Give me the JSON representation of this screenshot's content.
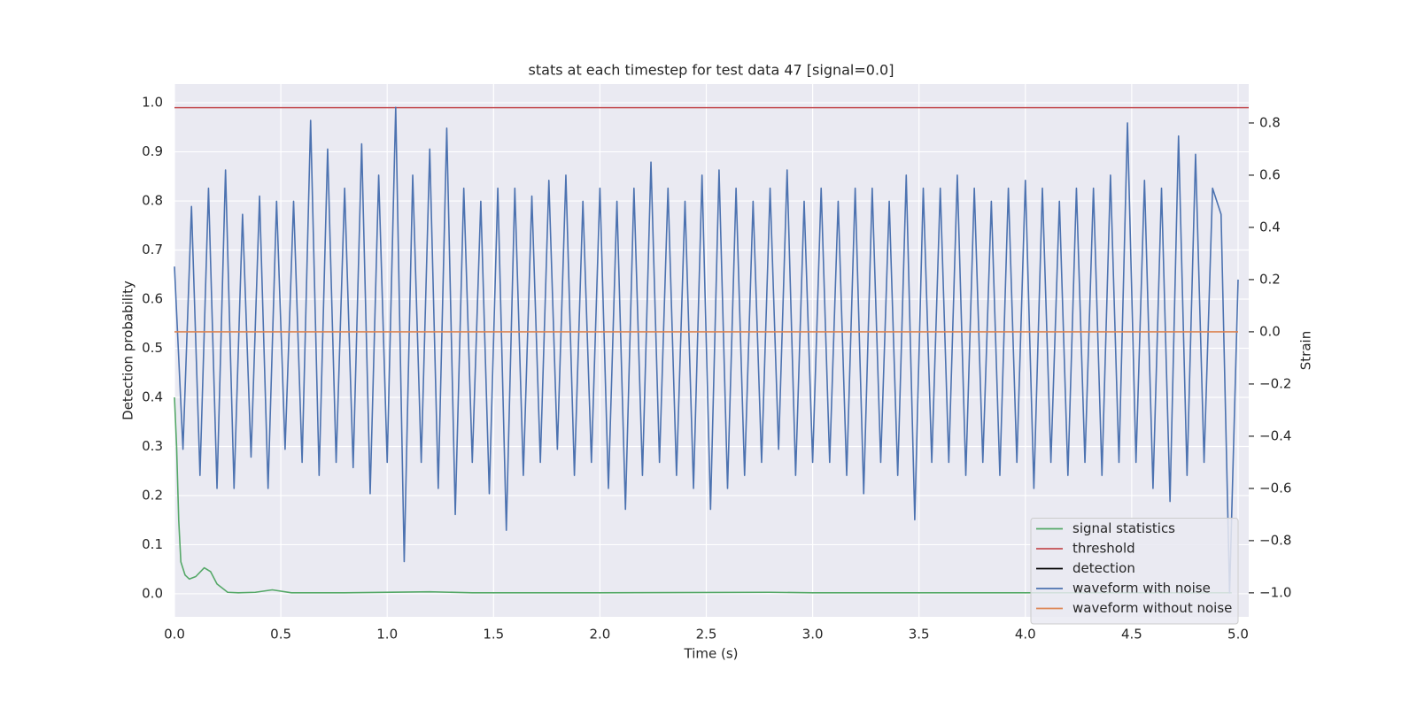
{
  "chart_data": {
    "type": "line",
    "title": "stats at each timestep for test data 47 [signal=0.0]",
    "xlabel": "Time (s)",
    "ylabel": "Detection probability",
    "y2label": "Strain",
    "xlim": [
      0,
      5.05
    ],
    "ylim": [
      -0.047,
      1.038
    ],
    "y2lim": [
      -1.092,
      0.949
    ],
    "xticks": [
      {
        "value": 0,
        "label": "0.0"
      },
      0.5,
      {
        "value": 1,
        "label": "1.0"
      },
      1.5,
      {
        "value": 2,
        "label": "2.0"
      },
      2.5,
      {
        "value": 3,
        "label": "3.0"
      },
      3.5,
      {
        "value": 4,
        "label": "4.0"
      },
      4.5,
      {
        "value": 5,
        "label": "5.0"
      }
    ],
    "yticks": [
      {
        "value": 0,
        "label": "0.0"
      },
      0.1,
      0.2,
      0.3,
      0.4,
      0.5,
      0.6,
      0.7,
      0.8,
      0.9,
      {
        "value": 1,
        "label": "1.0"
      }
    ],
    "y2ticks": [
      {
        "value": -1,
        "label": "−1.0"
      },
      {
        "value": -0.8,
        "label": "−0.8"
      },
      {
        "value": -0.6,
        "label": "−0.6"
      },
      {
        "value": -0.4,
        "label": "−0.4"
      },
      {
        "value": -0.2,
        "label": "−0.2"
      },
      {
        "value": 0,
        "label": "0.0"
      },
      0.2,
      0.4,
      0.6,
      0.8
    ],
    "grid": true,
    "legend": "lower right",
    "series": [
      {
        "name": "signal statistics",
        "color": "#55a868",
        "x": [
          0,
          0.01,
          0.02,
          0.03,
          0.05,
          0.07,
          0.1,
          0.14,
          0.17,
          0.2,
          0.25,
          0.3,
          0.38,
          0.46,
          0.55,
          0.8,
          1.2,
          1.4,
          2.0,
          2.8,
          3.0,
          4.97
        ],
        "values": [
          0.4,
          0.3,
          0.15,
          0.065,
          0.038,
          0.03,
          0.035,
          0.053,
          0.045,
          0.02,
          0.003,
          0.002,
          0.003,
          0.008,
          0.002,
          0.002,
          0.004,
          0.002,
          0.002,
          0.003,
          0.002,
          0.002
        ]
      },
      {
        "name": "threshold",
        "color": "#c44e52",
        "x": [
          0,
          5.05
        ],
        "values": [
          0.99,
          0.99
        ]
      },
      {
        "name": "detection",
        "color": "#000000",
        "x": [],
        "values": []
      },
      {
        "name": "waveform with noise",
        "color": "#4c72b0",
        "axis": "y2",
        "x": [
          0,
          0.04,
          0.08,
          0.12,
          0.16,
          0.2,
          0.24,
          0.28,
          0.32,
          0.36,
          0.4,
          0.44,
          0.48,
          0.52,
          0.56,
          0.6,
          0.64,
          0.68,
          0.72,
          0.76,
          0.8,
          0.84,
          0.88,
          0.92,
          0.96,
          1,
          1.04,
          1.08,
          1.12,
          1.16,
          1.2,
          1.24,
          1.28,
          1.32,
          1.36,
          1.4,
          1.44,
          1.48,
          1.52,
          1.56,
          1.6,
          1.64,
          1.68,
          1.72,
          1.76,
          1.8,
          1.84,
          1.88,
          1.92,
          1.96,
          2,
          2.04,
          2.08,
          2.12,
          2.16,
          2.2,
          2.24,
          2.28,
          2.32,
          2.36,
          2.4,
          2.44,
          2.48,
          2.52,
          2.56,
          2.6,
          2.64,
          2.68,
          2.72,
          2.76,
          2.8,
          2.84,
          2.88,
          2.92,
          2.96,
          3,
          3.04,
          3.08,
          3.12,
          3.16,
          3.2,
          3.24,
          3.28,
          3.32,
          3.36,
          3.4,
          3.44,
          3.48,
          3.52,
          3.56,
          3.6,
          3.64,
          3.68,
          3.72,
          3.76,
          3.8,
          3.84,
          3.88,
          3.92,
          3.96,
          4,
          4.04,
          4.08,
          4.12,
          4.16,
          4.2,
          4.24,
          4.28,
          4.32,
          4.36,
          4.4,
          4.44,
          4.48,
          4.52,
          4.56,
          4.6,
          4.64,
          4.68,
          4.72,
          4.76,
          4.8,
          4.84,
          4.88,
          4.92,
          4.96,
          5
        ],
        "values": [
          0.25,
          -0.45,
          0.48,
          -0.55,
          0.55,
          -0.6,
          0.62,
          -0.6,
          0.45,
          -0.48,
          0.52,
          -0.6,
          0.5,
          -0.45,
          0.5,
          -0.5,
          0.81,
          -0.55,
          0.7,
          -0.5,
          0.55,
          -0.52,
          0.72,
          -0.62,
          0.6,
          -0.5,
          0.86,
          -0.88,
          0.6,
          -0.5,
          0.7,
          -0.6,
          0.78,
          -0.7,
          0.55,
          -0.5,
          0.5,
          -0.62,
          0.55,
          -0.76,
          0.55,
          -0.55,
          0.52,
          -0.5,
          0.58,
          -0.45,
          0.6,
          -0.55,
          0.5,
          -0.5,
          0.55,
          -0.6,
          0.5,
          -0.68,
          0.55,
          -0.55,
          0.65,
          -0.5,
          0.55,
          -0.55,
          0.5,
          -0.6,
          0.6,
          -0.68,
          0.62,
          -0.6,
          0.55,
          -0.55,
          0.5,
          -0.5,
          0.55,
          -0.45,
          0.62,
          -0.55,
          0.5,
          -0.5,
          0.55,
          -0.5,
          0.5,
          -0.55,
          0.55,
          -0.62,
          0.55,
          -0.5,
          0.5,
          -0.55,
          0.6,
          -0.72,
          0.55,
          -0.5,
          0.55,
          -0.5,
          0.6,
          -0.55,
          0.55,
          -0.5,
          0.5,
          -0.55,
          0.55,
          -0.5,
          0.58,
          -0.6,
          0.55,
          -0.5,
          0.5,
          -0.55,
          0.55,
          -0.5,
          0.55,
          -0.55,
          0.6,
          -0.5,
          0.8,
          -0.5,
          0.58,
          -0.6,
          0.55,
          -0.65,
          0.75,
          -0.55,
          0.68,
          -0.5,
          0.55,
          0.45,
          -1.0,
          0.2
        ]
      },
      {
        "name": "waveform without noise",
        "color": "#dd8452",
        "axis": "y2",
        "x": [
          0,
          5
        ],
        "values": [
          0,
          0
        ]
      }
    ]
  }
}
